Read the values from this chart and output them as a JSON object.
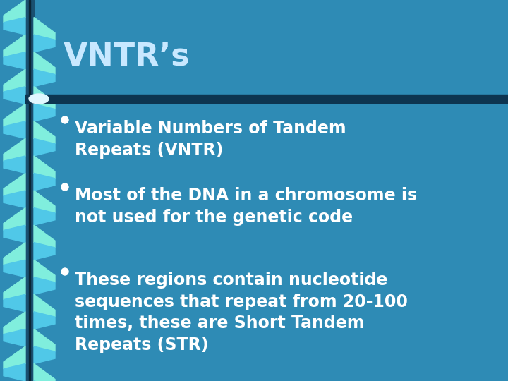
{
  "title": "VNTR’s",
  "title_color": "#C8E8FF",
  "title_fontsize": 32,
  "bg_color": "#2E8BB5",
  "separator_color": "#1A4A6B",
  "bullet_color": "#FFFFFF",
  "bullet_fontsize": 17,
  "bullets": [
    "Variable Numbers of Tandem\nRepeats (VNTR)",
    "Most of the DNA in a chromosome is\nnot used for the genetic code",
    "These regions contain nucleotide\nsequences that repeat from 20-100\ntimes, these are Short Tandem\nRepeats (STR)"
  ],
  "spiral_dark": "#1A5070",
  "spiral_light": "#80EEDD",
  "spiral_mid": "#50C8E8",
  "glare_color": "#E0F8FF",
  "sep_dot_color": "#C0E8F8"
}
